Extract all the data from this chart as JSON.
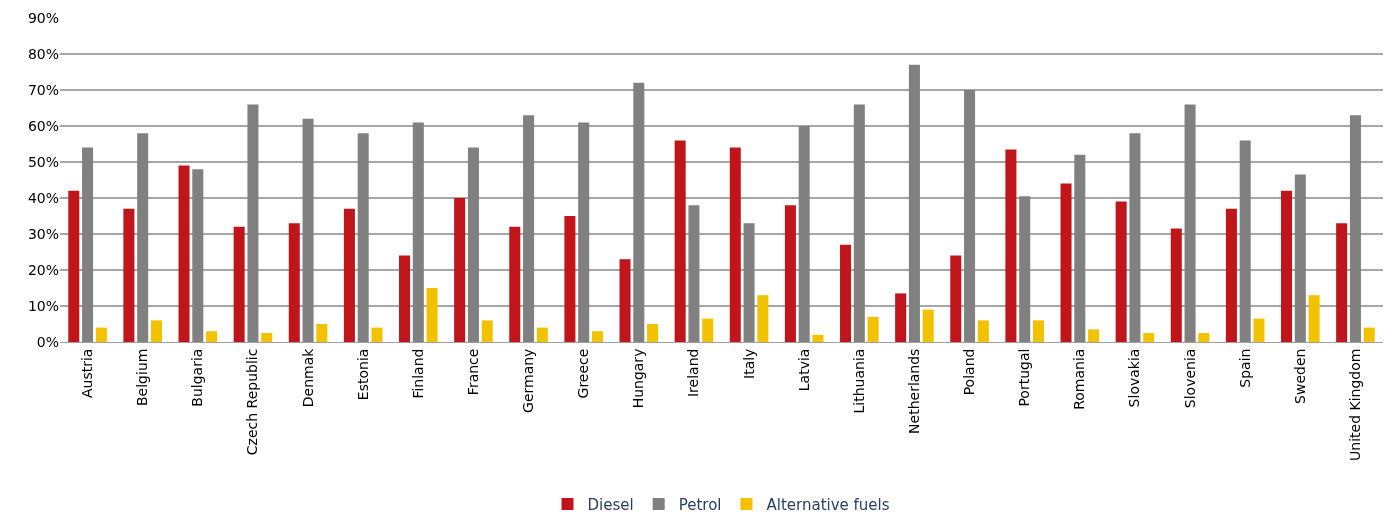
{
  "chart_data": {
    "type": "bar",
    "categories": [
      "Austria",
      "Belgium",
      "Bulgaria",
      "Czech Republic",
      "Denmak",
      "Estonia",
      "Finland",
      "France",
      "Germany",
      "Greece",
      "Hungary",
      "Ireland",
      "Italy",
      "Latvia",
      "Lithuania",
      "Netherlands",
      "Poland",
      "Portugal",
      "Romania",
      "Slovakia",
      "Slovenia",
      "Spain",
      "Sweden",
      "United Kingdom"
    ],
    "series": [
      {
        "name": "Diesel",
        "color": "#c0161b",
        "values": [
          42,
          37,
          49,
          32,
          33,
          37,
          24,
          40,
          32,
          35,
          23,
          56,
          54,
          38,
          27,
          13.5,
          24,
          53.5,
          44,
          39,
          31.5,
          37,
          42,
          33
        ]
      },
      {
        "name": "Petrol",
        "color": "#808080",
        "values": [
          54,
          58,
          48,
          66,
          62,
          58,
          61,
          54,
          63,
          61,
          72,
          38,
          33,
          60,
          66,
          77,
          70,
          40.5,
          52,
          58,
          66,
          56,
          46.5,
          63
        ]
      },
      {
        "name": "Alternative fuels",
        "color": "#f2c200",
        "values": [
          4,
          6,
          3,
          2.5,
          5,
          4,
          15,
          6,
          4,
          3,
          5,
          6.5,
          13,
          2,
          7,
          9,
          6,
          6,
          3.5,
          2.5,
          2.5,
          6.5,
          13,
          4
        ]
      }
    ],
    "ylim": [
      0,
      90
    ],
    "yticks": [
      {
        "value": 0,
        "label": "0%"
      },
      {
        "value": 10,
        "label": "10%"
      },
      {
        "value": 20,
        "label": "20%"
      },
      {
        "value": 30,
        "label": "30%"
      },
      {
        "value": 40,
        "label": "40%"
      },
      {
        "value": 50,
        "label": "50%"
      },
      {
        "value": 60,
        "label": "60%"
      },
      {
        "value": 70,
        "label": "70%"
      },
      {
        "value": 80,
        "label": "80%"
      },
      {
        "value": 90,
        "label": "90%"
      }
    ],
    "grid": "y",
    "legend": "bottom"
  }
}
